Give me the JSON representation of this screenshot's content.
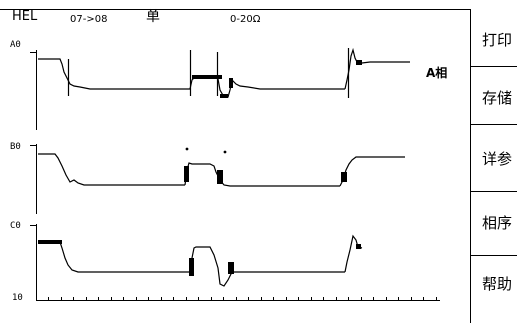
{
  "header": {
    "device": "HEL",
    "range_text": "07->08",
    "mode": "单",
    "scale": "0-20Ω"
  },
  "channels": {
    "a": "A0",
    "b": "B0",
    "c": "C0",
    "bottom": "10"
  },
  "phase_label": "A相",
  "menu": {
    "items": [
      "打印",
      "存储",
      "详参",
      "相序",
      "帮助"
    ]
  },
  "colors": {
    "trace": "#000000",
    "background": "#ffffff"
  }
}
